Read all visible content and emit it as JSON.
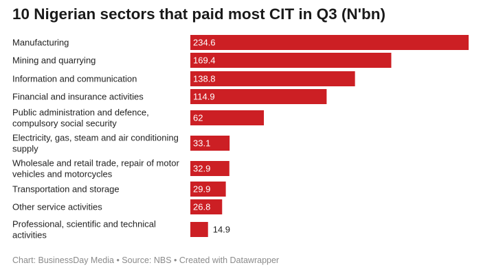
{
  "title": "10 Nigerian sectors that paid most CIT in Q3 (N'bn)",
  "footer": "Chart: BusinessDay Media • Source: NBS • Created with Datawrapper",
  "chart_data": {
    "type": "bar",
    "orientation": "horizontal",
    "title": "10 Nigerian sectors that paid most CIT in Q3 (N'bn)",
    "categories": [
      [
        "Manufacturing"
      ],
      [
        "Mining and quarrying"
      ],
      [
        "Information and communication"
      ],
      [
        "Financial and insurance activities"
      ],
      [
        "Public administration and defence,",
        "compulsory social security"
      ],
      [
        "Electricity, gas, steam and air conditioning",
        "supply"
      ],
      [
        "Wholesale and retail trade, repair of motor",
        "vehicles and motorcycles"
      ],
      [
        "Transportation and storage"
      ],
      [
        "Other service activities"
      ],
      [
        "Professional, scientific and technical",
        "activities"
      ]
    ],
    "values": [
      234.6,
      169.4,
      138.8,
      114.9,
      62,
      33.1,
      32.9,
      29.9,
      26.8,
      14.9
    ],
    "value_labels": [
      "234.6",
      "169.4",
      "138.8",
      "114.9",
      "62",
      "33.1",
      "32.9",
      "29.9",
      "26.8",
      "14.9"
    ],
    "xlim": [
      0,
      234.6
    ],
    "grid": false,
    "bar_color": "#cc1f24"
  }
}
